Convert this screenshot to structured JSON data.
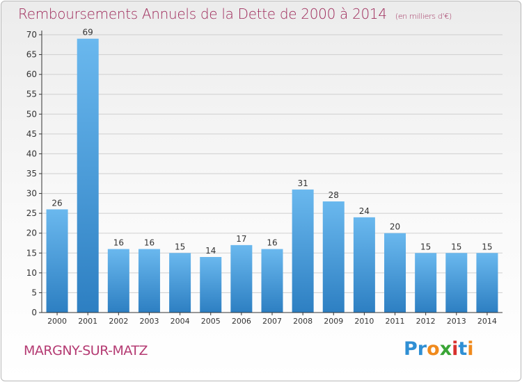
{
  "title": "Remboursements Annuels de la Dette de 2000 à 2014",
  "subtitle": "(en milliers d'€)",
  "commune": "MARGNY-SUR-MATZ",
  "logo": {
    "letters": [
      "P",
      "r",
      "o",
      "x",
      "i",
      "t",
      "i"
    ],
    "colors": [
      "#2f8fd4",
      "#2f8fd4",
      "#f08a1c",
      "#3aa536",
      "#d8322e",
      "#2f8fd4",
      "#f08a1c"
    ]
  },
  "colors": {
    "bar_top": "#6ab8ee",
    "bar_bottom": "#2d7fc2",
    "axis": "#333333",
    "grid": "#cfcfcf",
    "text": "#333333",
    "accent": "#9e2a5a"
  },
  "chart_data": {
    "type": "bar",
    "title": "Remboursements Annuels de la Dette de 2000 à 2014",
    "ylabel": "en milliers d'€",
    "categories": [
      "2000",
      "2001",
      "2002",
      "2003",
      "2004",
      "2005",
      "2006",
      "2007",
      "2008",
      "2009",
      "2010",
      "2011",
      "2012",
      "2013",
      "2014"
    ],
    "values": [
      26,
      69,
      16,
      16,
      15,
      14,
      17,
      16,
      31,
      28,
      24,
      20,
      15,
      15,
      15
    ],
    "ylim": [
      0,
      70
    ],
    "yticks": [
      0,
      5,
      10,
      15,
      20,
      25,
      30,
      35,
      40,
      45,
      50,
      55,
      60,
      65,
      70
    ],
    "grid": true
  }
}
